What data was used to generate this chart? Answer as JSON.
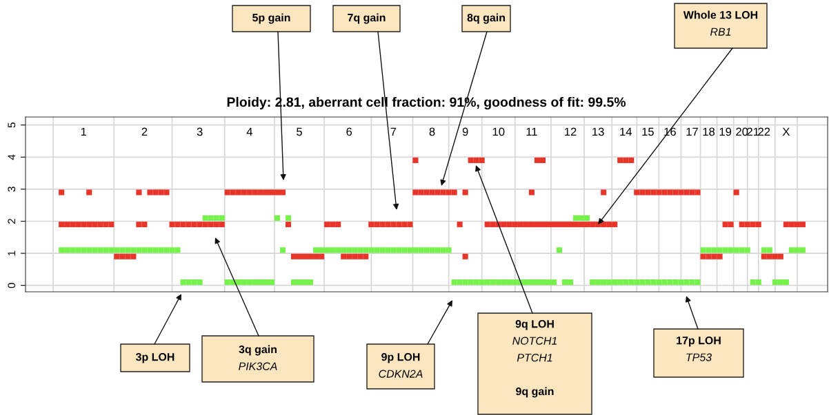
{
  "chart_data": {
    "type": "scatter",
    "title": "Ploidy: 2.81, aberrant cell fraction: 91%, goodness of fit: 99.5%",
    "categories": [
      null,
      null,
      null,
      null,
      null,
      null,
      null,
      null,
      null,
      null,
      "1",
      null,
      null,
      null,
      null,
      null,
      null,
      null,
      null,
      null,
      null,
      "2",
      null,
      null,
      null,
      null,
      null,
      null,
      null,
      null,
      null,
      "3",
      null,
      null,
      null,
      null,
      null,
      null,
      null,
      null,
      "4",
      null,
      null,
      null,
      null,
      null,
      null,
      null,
      null,
      "5",
      null,
      null,
      null,
      null,
      null,
      null,
      null,
      null,
      "6",
      null,
      null,
      null,
      null,
      null,
      null,
      null,
      "7",
      null,
      null,
      null,
      null,
      null,
      null,
      "8",
      null,
      null,
      null,
      null,
      null,
      "9",
      null,
      null,
      null,
      null,
      null,
      "10",
      null,
      null,
      null,
      null,
      null,
      "11",
      null,
      null,
      null,
      null,
      null,
      null,
      "12",
      null,
      null,
      null,
      null,
      "13",
      null,
      null,
      null,
      null,
      "14",
      null,
      null,
      null,
      "15",
      null,
      null,
      null,
      "16",
      null,
      null,
      null,
      "17",
      null,
      null,
      "18",
      null,
      null,
      "19",
      null,
      null,
      "20",
      null,
      "21",
      null,
      "22",
      null,
      null,
      null,
      "X",
      null,
      null,
      null,
      null,
      null,
      null,
      null
    ],
    "series": [
      {
        "color": "#e8352a",
        "values": [
          null,
          null,
          null,
          null,
          null,
          null,
          1.9,
          1.9,
          1.9,
          1.9,
          1.9,
          1.9,
          1.9,
          1.9,
          1.9,
          1.9,
          0.9,
          0.9,
          0.9,
          0.9,
          1.9,
          1.9,
          2.9,
          2.9,
          2.9,
          2.9,
          1.9,
          1.9,
          1.9,
          1.9,
          1.9,
          1.9,
          1.9,
          1.9,
          1.9,
          1.9,
          2.9,
          2.9,
          2.9,
          2.9,
          2.9,
          2.9,
          2.9,
          2.9,
          2.9,
          2.9,
          2.9,
          1.9,
          0.9,
          0.9,
          0.9,
          0.9,
          0.9,
          0.9,
          1.9,
          1.9,
          1.9,
          0.9,
          0.9,
          0.9,
          0.9,
          0.9,
          1.9,
          1.9,
          1.9,
          1.9,
          1.9,
          1.9,
          1.9,
          1.9,
          2.9,
          2.9,
          2.9,
          2.9,
          2.9,
          2.9,
          2.9,
          2.9,
          1.9,
          2.9,
          3.9,
          3.9,
          3.9,
          1.9,
          1.9,
          1.9,
          1.9,
          1.9,
          1.9,
          1.9,
          1.9,
          1.9,
          1.9,
          1.9,
          1.9,
          1.9,
          1.9,
          1.9,
          1.9,
          1.9,
          1.9,
          1.9,
          1.9,
          1.9,
          1.9,
          1.9,
          1.9,
          3.9,
          3.9,
          3.9,
          2.9,
          2.9,
          2.9,
          2.9,
          2.9,
          2.9,
          2.9,
          2.9,
          2.9,
          2.9,
          2.9,
          2.9,
          0.9,
          0.9,
          0.9,
          0.9,
          1.9,
          1.9,
          2.9,
          1.9,
          1.9,
          1.9,
          1.9,
          0.9,
          0.9,
          0.9,
          0.9,
          1.9,
          1.9,
          1.9,
          1.9,
          null,
          null,
          null,
          null
        ]
      },
      {
        "color": "#e8352a",
        "values": [
          null,
          null,
          null,
          null,
          null,
          null,
          2.9,
          null,
          null,
          null,
          null,
          2.9,
          null,
          null,
          null,
          null,
          null,
          null,
          null,
          null,
          2.9,
          null,
          null,
          null,
          null,
          null,
          null,
          null,
          null,
          null,
          null,
          null,
          null,
          null,
          null,
          null,
          null,
          null,
          null,
          null,
          null,
          null,
          null,
          null,
          null,
          null,
          null,
          null,
          null,
          null,
          null,
          null,
          null,
          null,
          null,
          null,
          null,
          null,
          null,
          null,
          null,
          null,
          null,
          null,
          null,
          null,
          null,
          null,
          null,
          null,
          3.9,
          null,
          null,
          null,
          null,
          null,
          null,
          null,
          null,
          0.9,
          null,
          null,
          null,
          null,
          null,
          null,
          null,
          null,
          null,
          null,
          null,
          2.9,
          3.9,
          3.9,
          null,
          null,
          null,
          null,
          null,
          null,
          null,
          null,
          null,
          null,
          2.9,
          null,
          null,
          null,
          null,
          null,
          null,
          null,
          null,
          null,
          null,
          null,
          null,
          null,
          null,
          null,
          null,
          null,
          null,
          null,
          null,
          null,
          null,
          null,
          null,
          null,
          null,
          null,
          null,
          null,
          null,
          null,
          null,
          null,
          null,
          null,
          null,
          null,
          null,
          null,
          null
        ]
      },
      {
        "color": "#77f24c",
        "values": [
          null,
          null,
          null,
          null,
          null,
          null,
          1.1,
          1.1,
          1.1,
          1.1,
          1.1,
          1.1,
          1.1,
          1.1,
          1.1,
          1.1,
          1.1,
          1.1,
          1.1,
          1.1,
          1.1,
          1.1,
          1.1,
          1.1,
          1.1,
          1.1,
          1.1,
          1.1,
          0.1,
          0.1,
          0.1,
          0.1,
          2.1,
          2.1,
          2.1,
          2.1,
          0.1,
          0.1,
          0.1,
          0.1,
          0.1,
          0.1,
          0.1,
          0.1,
          0.1,
          2.1,
          1.1,
          2.1,
          0.1,
          0.1,
          0.1,
          0.1,
          1.1,
          1.1,
          1.1,
          1.1,
          1.1,
          1.1,
          1.1,
          1.1,
          1.1,
          1.1,
          1.1,
          1.1,
          1.1,
          1.1,
          1.1,
          1.1,
          1.1,
          1.1,
          1.1,
          1.1,
          1.1,
          1.1,
          1.1,
          1.1,
          1.1,
          0.1,
          0.1,
          0.1,
          0.1,
          0.1,
          0.1,
          0.1,
          0.1,
          0.1,
          0.1,
          0.1,
          0.1,
          0.1,
          0.1,
          0.1,
          0.1,
          0.1,
          0.1,
          0.1,
          1.1,
          0.1,
          0.1,
          2.1,
          2.1,
          2.1,
          0.1,
          0.1,
          0.1,
          0.1,
          0.1,
          0.1,
          0.1,
          0.1,
          0.1,
          0.1,
          0.1,
          0.1,
          0.1,
          0.1,
          0.1,
          0.1,
          0.1,
          0.1,
          0.1,
          0.1,
          1.1,
          1.1,
          1.1,
          1.1,
          1.1,
          1.1,
          1.1,
          1.1,
          1.1,
          0.1,
          0.1,
          1.1,
          1.1,
          0.1,
          0.1,
          0.1,
          1.1,
          1.1,
          1.1,
          null,
          null,
          null,
          null
        ]
      }
    ],
    "ylim": [
      -0.2,
      5.25
    ],
    "yticks": [
      0,
      1,
      2,
      3,
      4,
      5
    ],
    "grid": true,
    "marker": "square",
    "annotations": [
      "5p gain",
      "7q gain",
      "8q gain",
      {
        "text": "Whole 13 LOH\nRB1",
        "x": "13",
        "y": 1.9
      },
      "3p LOH",
      "3q gain\nPIK3CA",
      "9p LOH\nCDKN2A",
      "9q LOH\nNOTCH1\nPTCH1\n\n9q gain",
      "17p LOH\nTP53"
    ]
  }
}
